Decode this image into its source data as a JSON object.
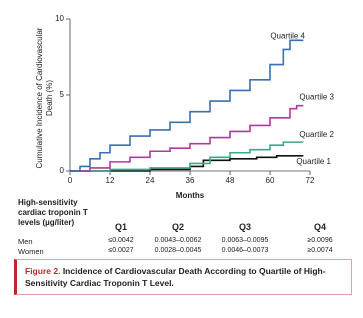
{
  "chart_data": {
    "type": "line",
    "step": true,
    "y_label": "Cumulative Incidence of Cardiovascular Death (%)",
    "x_label": "Months",
    "xlim": [
      0,
      72
    ],
    "xticks": [
      0,
      12,
      24,
      36,
      48,
      60,
      72
    ],
    "ylim": [
      0,
      10
    ],
    "yticks": [
      0,
      5,
      10
    ],
    "series": [
      {
        "name": "Quartile 1",
        "color": "#111111",
        "x": [
          0,
          24,
          36,
          40,
          48,
          56,
          62,
          70
        ],
        "values": [
          0,
          0.1,
          0.3,
          0.7,
          0.8,
          0.9,
          1.0,
          1.0
        ]
      },
      {
        "name": "Quartile 2",
        "color": "#3aa98a",
        "x": [
          0,
          12,
          24,
          36,
          42,
          48,
          54,
          60,
          64,
          70
        ],
        "values": [
          0,
          0.1,
          0.2,
          0.5,
          0.9,
          1.2,
          1.4,
          1.7,
          1.9,
          1.9
        ]
      },
      {
        "name": "Quartile 3",
        "color": "#b0389f",
        "x": [
          0,
          6,
          12,
          18,
          24,
          30,
          36,
          42,
          48,
          54,
          60,
          66,
          68,
          70
        ],
        "values": [
          0,
          0.2,
          0.6,
          0.9,
          1.3,
          1.5,
          1.8,
          2.2,
          2.6,
          3.0,
          3.5,
          4.1,
          4.3,
          4.3
        ]
      },
      {
        "name": "Quartile 4",
        "color": "#3a6fb0",
        "x": [
          0,
          3,
          6,
          9,
          12,
          18,
          24,
          30,
          36,
          42,
          48,
          54,
          60,
          64,
          66,
          70
        ],
        "values": [
          0,
          0.3,
          0.8,
          1.2,
          1.7,
          2.3,
          2.7,
          3.2,
          3.9,
          4.6,
          5.3,
          6.0,
          7.0,
          8.0,
          8.6,
          8.6
        ]
      }
    ]
  },
  "table": {
    "header": "High-sensitivity cardiac troponin T levels (µg/liter)",
    "columns": [
      "Q1",
      "Q2",
      "Q3",
      "Q4"
    ],
    "rows": [
      [
        "Men",
        "≤0.0042",
        "0.0043–0.0062",
        "0.0063–0.0095",
        "≥0.0096"
      ],
      [
        "Women",
        "≤0.0027",
        "0.0028–0.0045",
        "0.0046–0.0073",
        "≥0.0074"
      ]
    ]
  },
  "caption": {
    "label": "Figure 2.",
    "text": "Incidence of Cardiovascular Death According to Quartile of High-Sensitivity Cardiac Troponin T Level."
  }
}
